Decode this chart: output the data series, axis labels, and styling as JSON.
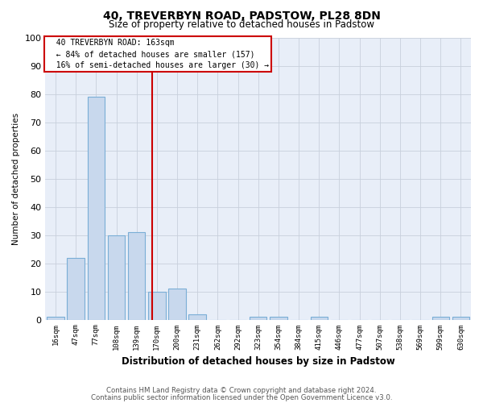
{
  "title1": "40, TREVERBYN ROAD, PADSTOW, PL28 8DN",
  "title2": "Size of property relative to detached houses in Padstow",
  "xlabel": "Distribution of detached houses by size in Padstow",
  "ylabel": "Number of detached properties",
  "footnote1": "Contains HM Land Registry data © Crown copyright and database right 2024.",
  "footnote2": "Contains public sector information licensed under the Open Government Licence v3.0.",
  "annotation_line1": "40 TREVERBYN ROAD: 163sqm",
  "annotation_line2": "← 84% of detached houses are smaller (157)",
  "annotation_line3": "16% of semi-detached houses are larger (30) →",
  "bin_edges": [
    16,
    47,
    77,
    108,
    139,
    170,
    200,
    231,
    262,
    292,
    323,
    354,
    384,
    415,
    446,
    477,
    507,
    538,
    569,
    599,
    630
  ],
  "bin_counts": [
    1,
    22,
    79,
    30,
    31,
    10,
    11,
    2,
    0,
    0,
    1,
    1,
    0,
    1,
    0,
    0,
    0,
    0,
    0,
    1,
    1
  ],
  "property_size": 163,
  "bar_color": "#c8d8ed",
  "bar_edge_color": "#7aaed6",
  "vline_color": "#cc0000",
  "annotation_box_edge_color": "#cc0000",
  "grid_color": "#c8d0dc",
  "ylim": [
    0,
    100
  ],
  "background_color": "#e8eef8"
}
